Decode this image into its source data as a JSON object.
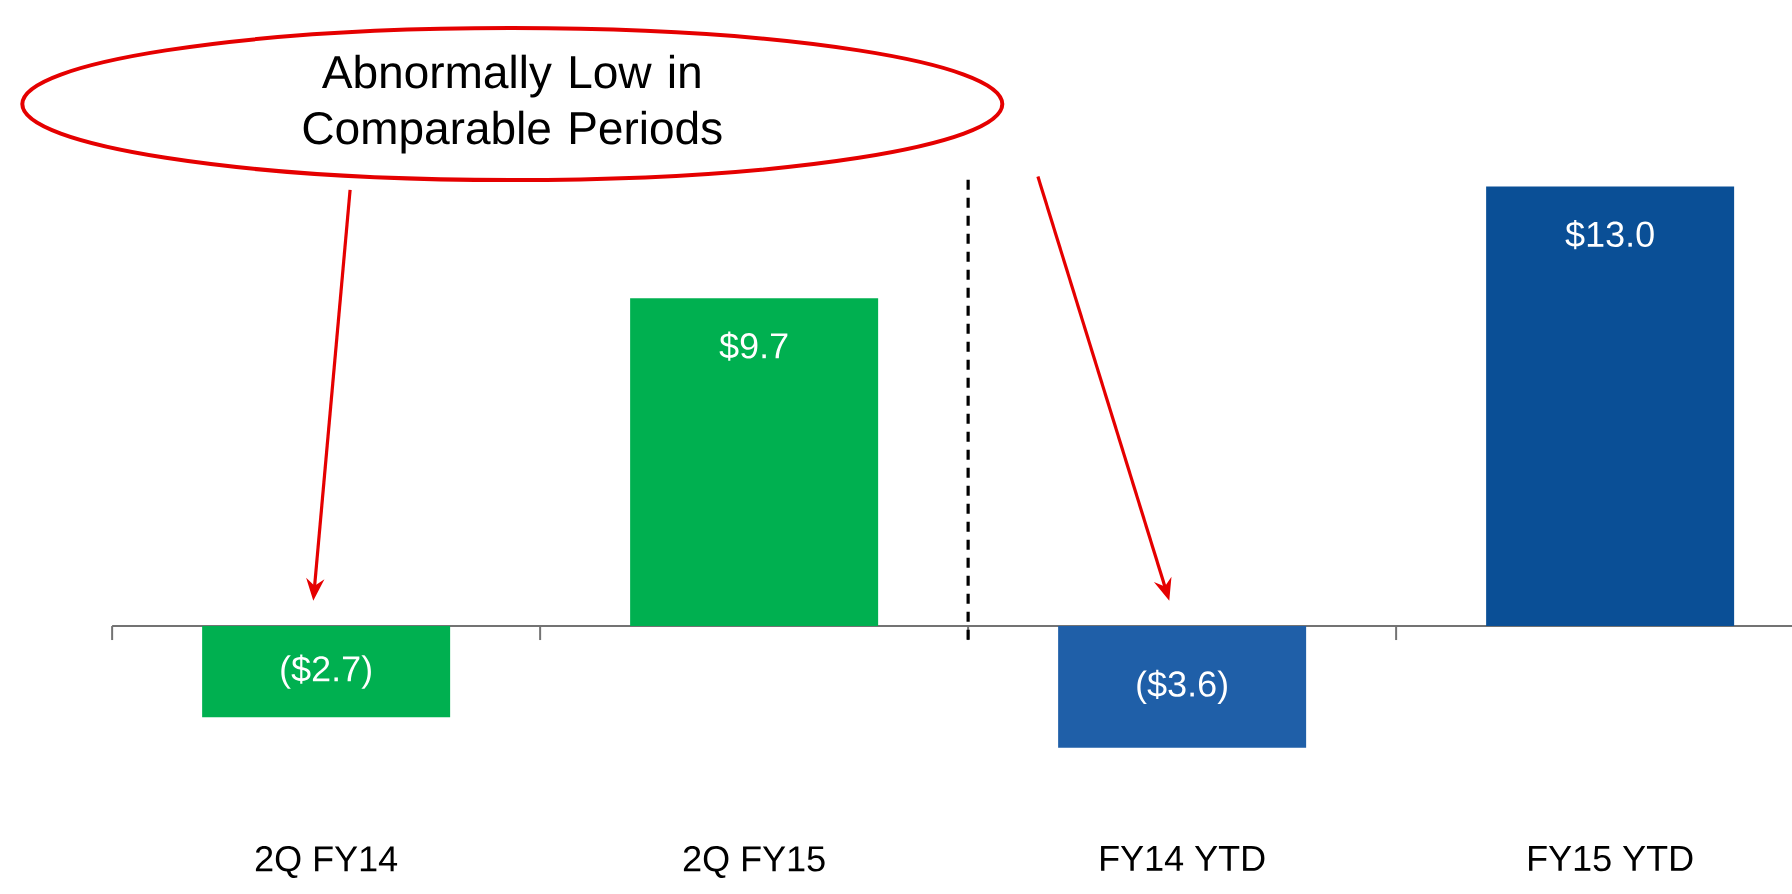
{
  "chart_data": {
    "type": "bar",
    "categories": [
      "2Q FY14",
      "2Q FY15",
      "FY14 YTD",
      "FY15 YTD"
    ],
    "values": [
      -2.7,
      9.7,
      -3.6,
      13.0
    ],
    "colors": [
      "#00b050",
      "#00b050",
      "#1f5fa8",
      "#0a4f96"
    ],
    "value_labels": [
      "($2.7)",
      "$9.7",
      "($3.6)",
      "$13.0"
    ],
    "annotations": [
      "Abnormally Low in Comparable Periods"
    ]
  }
}
